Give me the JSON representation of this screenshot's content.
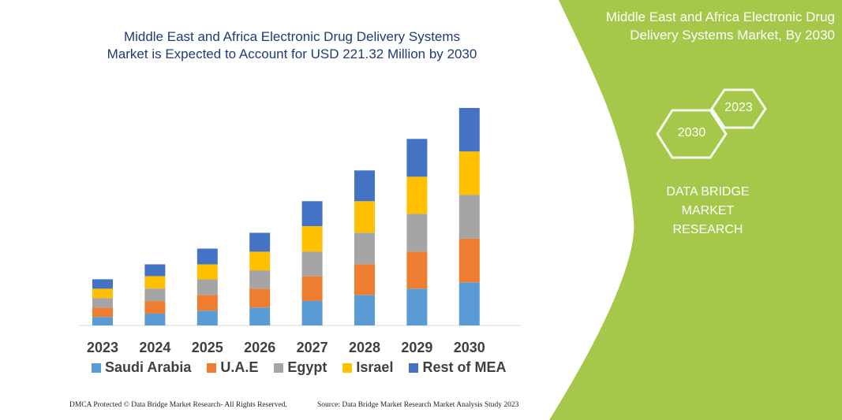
{
  "title": "Middle East and Africa Electronic Drug Delivery Systems Market is Expected to Account for USD 221.32 Million by 2030",
  "title_lines": [
    "Middle East and Africa Electronic Drug Delivery Systems",
    "Market is Expected to Account for USD 221.32 Million by 2030"
  ],
  "side_panel": {
    "title_lines": [
      "Middle East and Africa Electronic Drug",
      "Delivery Systems Market, By 2030"
    ],
    "hex_start": "2023",
    "hex_end": "2030",
    "brand_lines": [
      "DATA BRIDGE MARKET",
      "RESEARCH"
    ],
    "color": "#a5c84a"
  },
  "footer": {
    "left": "DMCA Protected © Data Bridge Market Research- All Rights Reserved.",
    "right": "Source: Data Bridge Market Research Market Analysis Study 2023"
  },
  "chart_data": {
    "type": "bar",
    "stacked": true,
    "unit": "USD Million",
    "categories": [
      "2023",
      "2024",
      "2025",
      "2026",
      "2027",
      "2028",
      "2029",
      "2030"
    ],
    "series": [
      {
        "name": "Saudi Arabia",
        "color": "#5b9bd5",
        "values": [
          8.6,
          12.0,
          15.0,
          18.2,
          24.9,
          31.0,
          37.5,
          43.9
        ]
      },
      {
        "name": "U.A.E",
        "color": "#ed7d31",
        "values": [
          9.6,
          12.8,
          16.0,
          19.2,
          25.4,
          31.3,
          37.7,
          44.4
        ]
      },
      {
        "name": "Egypt",
        "color": "#a5a5a5",
        "values": [
          9.6,
          12.8,
          16.0,
          18.7,
          24.9,
          32.1,
          38.5,
          44.7
        ]
      },
      {
        "name": "Israel",
        "color": "#ffc000",
        "values": [
          9.6,
          12.6,
          15.2,
          19.0,
          25.9,
          32.1,
          37.7,
          44.1
        ]
      },
      {
        "name": "Rest of MEA",
        "color": "#4472c4",
        "values": [
          9.6,
          12.0,
          16.0,
          19.2,
          25.4,
          31.3,
          38.5,
          44.3
        ]
      }
    ],
    "y_axis_shown": false,
    "grid": false,
    "legend_position": "bottom"
  }
}
